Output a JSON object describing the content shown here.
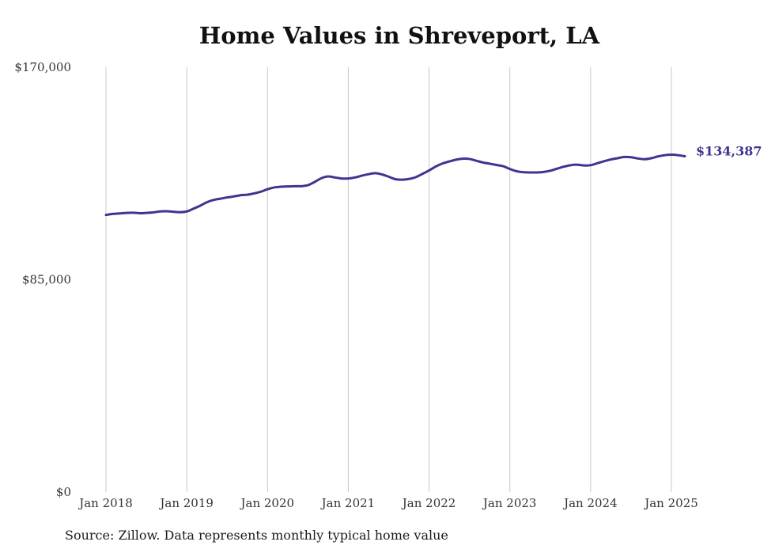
{
  "chart_data": {
    "type": "line",
    "title": "Home Values in Shreveport, LA",
    "source": "Source: Zillow. Data represents monthly typical home value",
    "ylim": [
      0,
      170000
    ],
    "y_ticks": [
      {
        "value": 170000,
        "label": "$170,000"
      },
      {
        "value": 85000,
        "label": "$85,000"
      },
      {
        "value": 0,
        "label": "$0"
      }
    ],
    "x_ticks": [
      {
        "index": 0,
        "label": "Jan 2018"
      },
      {
        "index": 12,
        "label": "Jan 2019"
      },
      {
        "index": 24,
        "label": "Jan 2020"
      },
      {
        "index": 36,
        "label": "Jan 2021"
      },
      {
        "index": 48,
        "label": "Jan 2022"
      },
      {
        "index": 60,
        "label": "Jan 2023"
      },
      {
        "index": 72,
        "label": "Jan 2024"
      },
      {
        "index": 84,
        "label": "Jan 2025"
      }
    ],
    "grid": {
      "vertical": true,
      "horizontal": false
    },
    "series": [
      {
        "color": "#3d3590",
        "end_label": "$134,387",
        "values": [
          110900,
          111300,
          111500,
          111700,
          111800,
          111600,
          111700,
          111900,
          112300,
          112400,
          112200,
          112000,
          112300,
          113400,
          114600,
          116000,
          116900,
          117400,
          117900,
          118300,
          118800,
          119000,
          119500,
          120200,
          121200,
          121900,
          122200,
          122300,
          122400,
          122400,
          122800,
          124100,
          125600,
          126300,
          125900,
          125500,
          125500,
          125900,
          126600,
          127200,
          127600,
          127100,
          126200,
          125200,
          125000,
          125300,
          126000,
          127300,
          128700,
          130300,
          131500,
          132300,
          133000,
          133400,
          133300,
          132600,
          131900,
          131400,
          130900,
          130400,
          129300,
          128400,
          128000,
          127900,
          127900,
          128100,
          128600,
          129400,
          130200,
          130800,
          131000,
          130700,
          130800,
          131600,
          132400,
          133100,
          133600,
          134100,
          134000,
          133500,
          133200,
          133600,
          134300,
          134800,
          135000,
          134800,
          134387
        ]
      }
    ]
  }
}
